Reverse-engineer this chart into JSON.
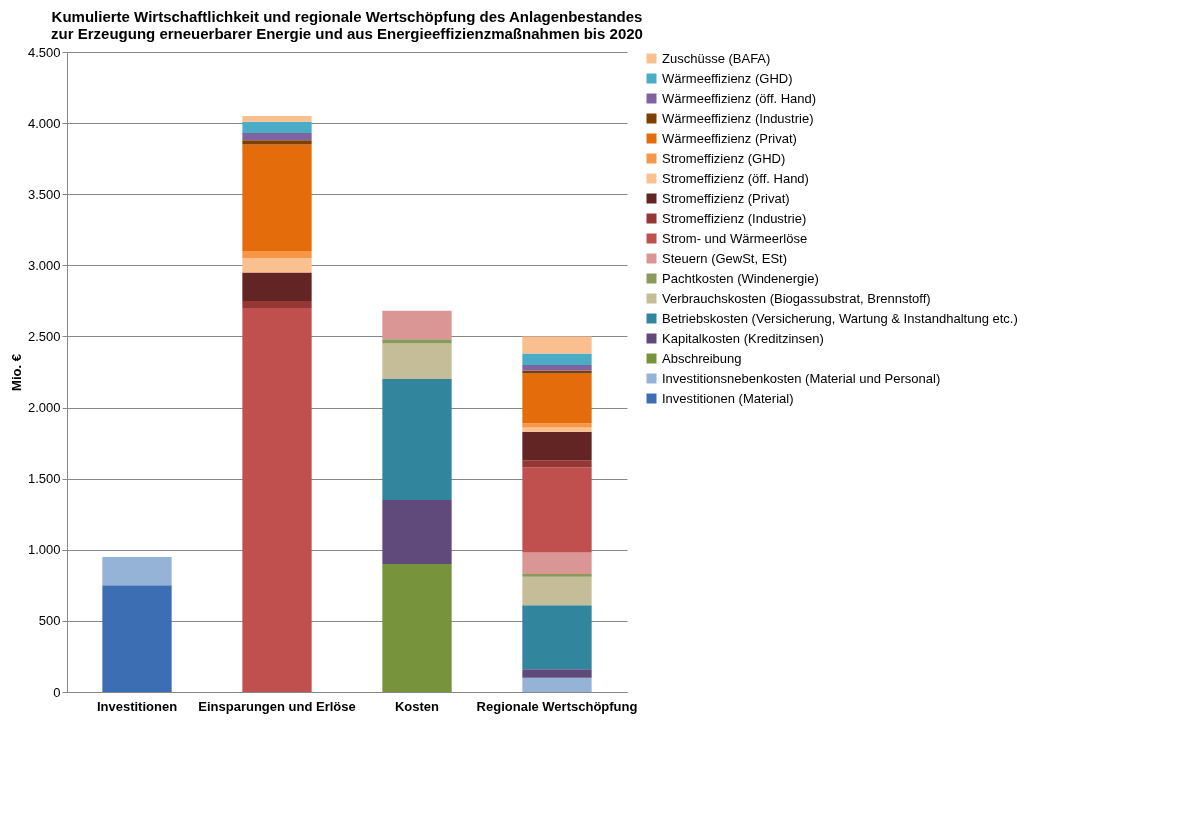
{
  "chart_data": {
    "type": "bar",
    "stacked": true,
    "title": "Kumulierte Wirtschaftlichkeit und regionale Wertschöpfung des Anlagenbestandes zur Erzeugung erneuerbarer Energie und aus Energieeffizienzmaßnahmen bis 2020",
    "ylabel": "Mio. €",
    "categories": [
      "Investitionen",
      "Einsparungen und Erlöse",
      "Kosten",
      "Regionale Wertschöpfung"
    ],
    "ylim": [
      0,
      4500
    ],
    "yticks": [
      0,
      500,
      {
        "value": 1000,
        "label": "1.000"
      },
      {
        "value": 1500,
        "label": "1.500"
      },
      {
        "value": 2000,
        "label": "2.000"
      },
      {
        "value": 2500,
        "label": "2.500"
      },
      {
        "value": 3000,
        "label": "3.000"
      },
      {
        "value": 3500,
        "label": "3.500"
      },
      {
        "value": 4000,
        "label": "4.000"
      },
      {
        "value": 4500,
        "label": "4.500"
      }
    ],
    "grid": "y",
    "legend": "right",
    "series": [
      {
        "name": "Investitionen (Material)",
        "color": "#3c6eb4",
        "values": [
          750,
          null,
          null,
          null
        ]
      },
      {
        "name": "Investitionsnebenkosten (Material und Personal)",
        "color": "#95b3d7",
        "values": [
          200,
          null,
          null,
          100
        ]
      },
      {
        "name": "Abschreibung",
        "color": "#77933c",
        "values": [
          null,
          null,
          900,
          null
        ]
      },
      {
        "name": "Kapitalkosten (Kreditzinsen)",
        "color": "#604a7b",
        "values": [
          null,
          null,
          450,
          60
        ]
      },
      {
        "name": "Betriebskosten (Versicherung, Wartung & Instandhaltung etc.)",
        "color": "#31859c",
        "values": [
          null,
          null,
          850,
          450
        ]
      },
      {
        "name": "Verbrauchskosten (Biogassubstrat, Brennstoff)",
        "color": "#c4bd97",
        "values": [
          null,
          null,
          250,
          200
        ]
      },
      {
        "name": "Pachtkosten (Windenergie)",
        "color": "#8a9a5b",
        "values": [
          null,
          null,
          30,
          20
        ]
      },
      {
        "name": "Steuern (GewSt, ESt)",
        "color": "#d99694",
        "values": [
          null,
          null,
          200,
          150
        ]
      },
      {
        "name": "Strom- und Wärmeerlöse",
        "color": "#c0504d",
        "values": [
          null,
          2700,
          null,
          600
        ]
      },
      {
        "name": "Stromeffizienz (Industrie)",
        "color": "#953735",
        "values": [
          null,
          50,
          null,
          50
        ]
      },
      {
        "name": "Stromeffizienz (Privat)",
        "color": "#632523",
        "values": [
          null,
          200,
          null,
          200
        ]
      },
      {
        "name": "Stromeffizienz (öff. Hand)",
        "color": "#fac090",
        "values": [
          null,
          100,
          null,
          30
        ]
      },
      {
        "name": "Stromeffizienz (GHD)",
        "color": "#f79646",
        "values": [
          null,
          50,
          null,
          30
        ]
      },
      {
        "name": "Wärmeeffizienz (Privat)",
        "color": "#e46c0a",
        "values": [
          null,
          750,
          null,
          350
        ]
      },
      {
        "name": "Wärmeeffizienz (Industrie)",
        "color": "#7f3f00",
        "values": [
          null,
          30,
          null,
          20
        ]
      },
      {
        "name": "Wärmeeffizienz (öff. Hand)",
        "color": "#8064a2",
        "values": [
          null,
          50,
          null,
          40
        ]
      },
      {
        "name": "Wärmeeffizienz (GHD)",
        "color": "#4bacc6",
        "values": [
          null,
          80,
          null,
          80
        ]
      },
      {
        "name": "Zuschüsse (BAFA)",
        "color": "#fabf8f",
        "values": [
          null,
          40,
          null,
          120
        ]
      }
    ]
  }
}
